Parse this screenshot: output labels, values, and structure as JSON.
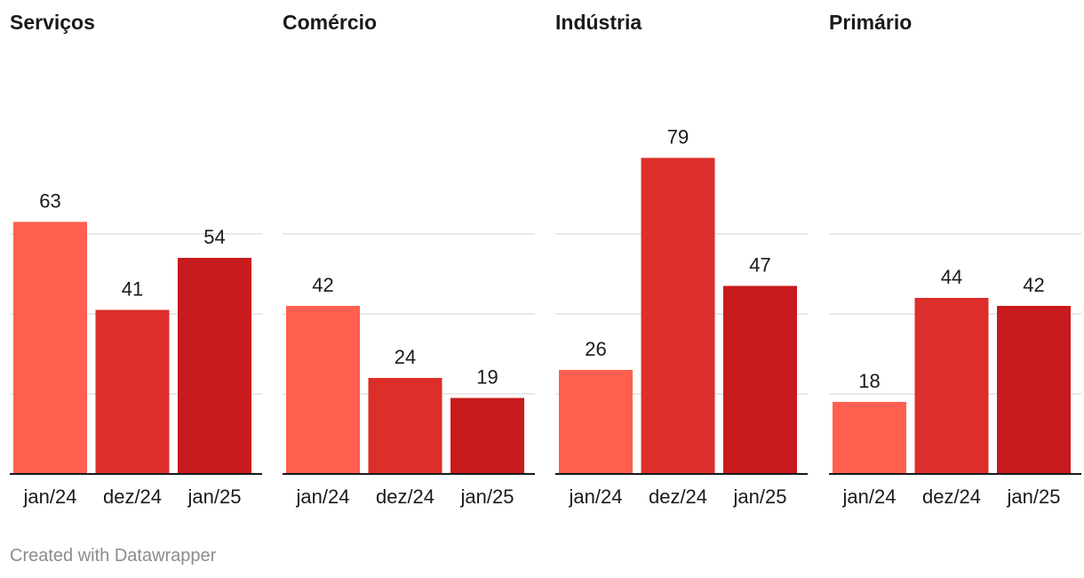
{
  "chart_data": {
    "type": "bar",
    "categories": [
      "jan/24",
      "dez/24",
      "jan/25"
    ],
    "ylim": [
      0,
      80
    ],
    "gridlines": [
      0,
      20,
      40,
      60
    ],
    "grid": true,
    "colors": [
      "#ff5f4f",
      "#dc2f2b",
      "#c81b1d"
    ],
    "panels": [
      {
        "title": "Serviços",
        "values": [
          63,
          41,
          54
        ]
      },
      {
        "title": "Comércio",
        "values": [
          42,
          24,
          19
        ]
      },
      {
        "title": "Indústria",
        "values": [
          26,
          79,
          47
        ]
      },
      {
        "title": "Primário",
        "values": [
          18,
          44,
          42
        ]
      }
    ]
  },
  "footer": {
    "credit": "Created with Datawrapper"
  }
}
